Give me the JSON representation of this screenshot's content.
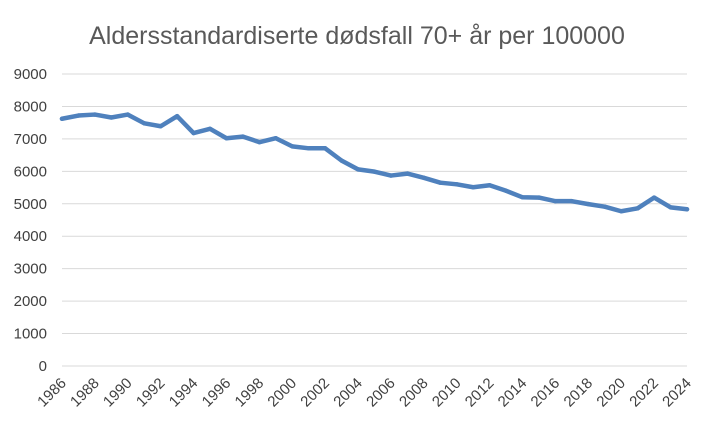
{
  "chart_data": {
    "type": "line",
    "title": "Aldersstandardiserte dødsfall 70+ år per 100000",
    "xlabel": "",
    "ylabel": "",
    "ylim": [
      0,
      9000
    ],
    "yticks": [
      0,
      1000,
      2000,
      3000,
      4000,
      5000,
      6000,
      7000,
      8000,
      9000
    ],
    "xlim": [
      1986,
      2024
    ],
    "xticks": [
      1986,
      1988,
      1990,
      1992,
      1994,
      1996,
      1998,
      2000,
      2002,
      2004,
      2006,
      2008,
      2010,
      2012,
      2014,
      2016,
      2018,
      2020,
      2022,
      2024
    ],
    "grid": "horizontal",
    "legend": "none",
    "color": "#4f81bd",
    "x": [
      1986,
      1987,
      1988,
      1989,
      1990,
      1991,
      1992,
      1993,
      1994,
      1995,
      1996,
      1997,
      1998,
      1999,
      2000,
      2001,
      2002,
      2003,
      2004,
      2005,
      2006,
      2007,
      2008,
      2009,
      2010,
      2011,
      2012,
      2013,
      2014,
      2015,
      2016,
      2017,
      2018,
      2019,
      2020,
      2021,
      2022,
      2023,
      2024
    ],
    "series": [
      {
        "values": [
          7620,
          7720,
          7750,
          7660,
          7750,
          7480,
          7390,
          7700,
          7180,
          7310,
          7020,
          7070,
          6900,
          7020,
          6770,
          6710,
          6710,
          6330,
          6060,
          5990,
          5870,
          5930,
          5800,
          5650,
          5600,
          5510,
          5570,
          5400,
          5200,
          5190,
          5080,
          5080,
          4990,
          4910,
          4770,
          4860,
          5190,
          4890,
          4830
        ]
      }
    ]
  }
}
